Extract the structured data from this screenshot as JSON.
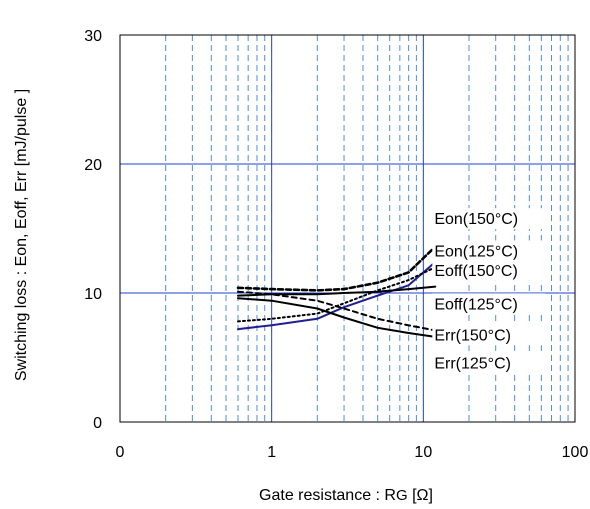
{
  "chart_data": {
    "type": "line",
    "title": "",
    "xlabel": "Gate resistance : R",
    "xlabel_sub": "G",
    "xlabel_unit": " [Ω]",
    "ylabel": "Switching loss  : Eon, Eoff, Err  [mJ/pulse ]",
    "x_scale": "log",
    "xlim": [
      0.1,
      100
    ],
    "ylim": [
      0,
      30
    ],
    "x_ticks": [
      {
        "value": 0.1,
        "label": "0"
      },
      {
        "value": 1,
        "label": "1"
      },
      {
        "value": 10,
        "label": "10"
      },
      {
        "value": 100,
        "label": "100"
      }
    ],
    "y_ticks": [
      {
        "value": 0,
        "label": "0"
      },
      {
        "value": 10,
        "label": "10"
      },
      {
        "value": 20,
        "label": "20"
      },
      {
        "value": 30,
        "label": "30"
      }
    ],
    "grid": {
      "major": "solid blue",
      "minor_x": "dashed light blue"
    },
    "series": [
      {
        "name": "Eon(150°C)",
        "color": "#1f1f8f",
        "style": "solid",
        "x": [
          0.6,
          1,
          2,
          3,
          5,
          8,
          12
        ],
        "y": [
          7.2,
          7.5,
          8.0,
          8.9,
          9.8,
          10.6,
          12.4
        ]
      },
      {
        "name": "Eon(125°C)",
        "color": "#000000",
        "style": "dotted",
        "x": [
          0.6,
          1,
          2,
          3,
          5,
          8,
          12
        ],
        "y": [
          7.8,
          8.0,
          8.4,
          9.2,
          10.2,
          11.0,
          12.0
        ]
      },
      {
        "name": "Eoff(150°C)",
        "color": "#000000",
        "style": "dashed-bold",
        "x": [
          0.6,
          1,
          2,
          3,
          5,
          8,
          12
        ],
        "y": [
          10.4,
          10.3,
          10.2,
          10.3,
          10.8,
          11.6,
          13.6
        ]
      },
      {
        "name": "Eoff(125°C)",
        "color": "#000000",
        "style": "solid",
        "x": [
          0.6,
          1,
          2,
          3,
          5,
          8,
          12
        ],
        "y": [
          9.8,
          9.9,
          9.9,
          10.0,
          10.1,
          10.3,
          10.5
        ]
      },
      {
        "name": "Err(150°C)",
        "color": "#000000",
        "style": "dashed",
        "x": [
          0.6,
          1,
          2,
          3,
          5,
          8,
          12
        ],
        "y": [
          10.1,
          9.9,
          9.4,
          8.8,
          8.0,
          7.5,
          7.1
        ]
      },
      {
        "name": "Err(125°C)",
        "color": "#000000",
        "style": "solid",
        "x": [
          0.6,
          1,
          2,
          3,
          5,
          8,
          12
        ],
        "y": [
          9.6,
          9.4,
          8.8,
          8.1,
          7.3,
          6.9,
          6.6
        ]
      }
    ],
    "annotations": [
      {
        "text": "Eon(150°C)",
        "x": 12,
        "y": 15.8
      },
      {
        "text": "Eon(125°C)",
        "x": 12,
        "y": 13.3
      },
      {
        "text": "Eoff(150°C)",
        "x": 12,
        "y": 11.8
      },
      {
        "text": "Eoff(125°C)",
        "x": 12,
        "y": 9.2
      },
      {
        "text": "Err(150°C)",
        "x": 12,
        "y": 6.8
      },
      {
        "text": "Err(125°C)",
        "x": 12,
        "y": 4.6
      }
    ]
  }
}
